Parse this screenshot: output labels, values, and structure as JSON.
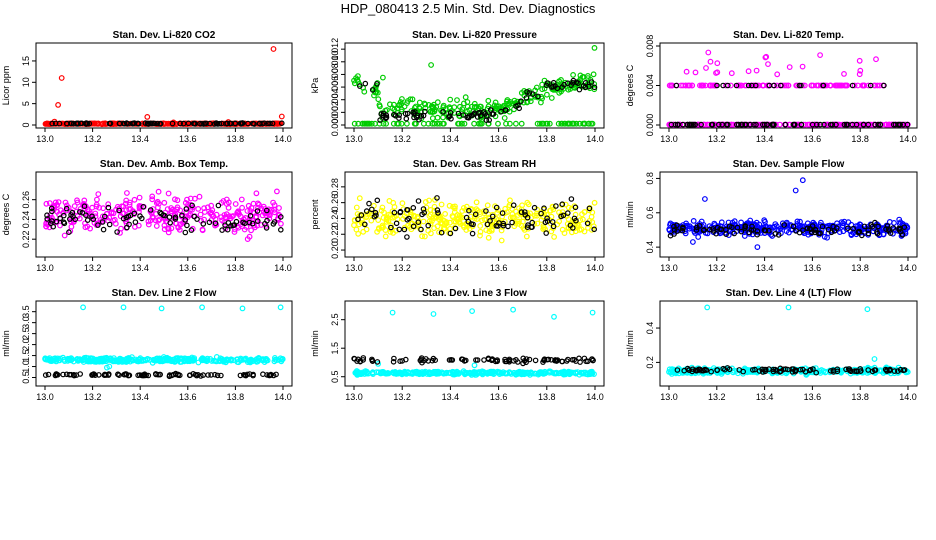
{
  "main_title": "HDP_080413  2.5 Min. Std. Dev. Diagnostics",
  "chart_data": [
    {
      "type": "scatter",
      "title": "Stan. Dev. Li-820 CO2",
      "ylabel": "Licor ppm",
      "xlim": [
        13.0,
        14.0
      ],
      "ylim": [
        0,
        18.5
      ],
      "xticks": [
        "13.0",
        "13.2",
        "13.4",
        "13.6",
        "13.8",
        "14.0"
      ],
      "yticks": [
        "0",
        "5",
        "10",
        "15"
      ],
      "color": "#ff0000",
      "base": 0.3,
      "spread": 0.08,
      "black_base": 0.35,
      "black_spread": 0.1,
      "outliers": [
        [
          13.04,
          0.8
        ],
        [
          13.055,
          4.7
        ],
        [
          13.07,
          11
        ],
        [
          13.43,
          1.9
        ],
        [
          13.96,
          17.8
        ],
        [
          13.995,
          2.0
        ],
        [
          13.54,
          0.6
        ],
        [
          13.77,
          0.7
        ]
      ]
    },
    {
      "type": "scatter",
      "title": "Stan. Dev. Li-820 Pressure",
      "ylabel": "kPa",
      "xlim": [
        13.0,
        14.0
      ],
      "ylim": [
        0,
        0.0125
      ],
      "xticks": [
        "13.0",
        "13.2",
        "13.4",
        "13.6",
        "13.8",
        "14.0"
      ],
      "yticks": [
        "0.000",
        "0.002",
        "0.004",
        "0.006",
        "0.008",
        "0.010",
        "0.012"
      ],
      "color": "#00cc00",
      "profile": "pressure",
      "outliers": [
        [
          13.998,
          0.0122
        ],
        [
          13.32,
          0.0095
        ],
        [
          13.12,
          0.0075
        ]
      ]
    },
    {
      "type": "scatter",
      "title": "Stan. Dev. Li-820 Temp.",
      "ylabel": "degrees C",
      "xlim": [
        13.0,
        14.0
      ],
      "ylim": [
        0,
        0.008
      ],
      "xticks": [
        "13.0",
        "13.2",
        "13.4",
        "13.6",
        "13.8",
        "14.0"
      ],
      "yticks": [
        "0.000",
        "0.004",
        "0.008"
      ],
      "color": "#ff00ff",
      "profile": "temp"
    },
    {
      "type": "scatter",
      "title": "Stan. Dev. Amb. Box Temp.",
      "ylabel": "degrees C",
      "xlim": [
        13.0,
        14.0
      ],
      "ylim": [
        0.205,
        0.285
      ],
      "xticks": [
        "13.0",
        "13.2",
        "13.4",
        "13.6",
        "13.8",
        "14.0"
      ],
      "yticks": [
        "0.22",
        "0.24",
        "0.26"
      ],
      "color": "#ff00ff",
      "base": 0.245,
      "spread": 0.018,
      "black_base": 0.24,
      "black_spread": 0.012
    },
    {
      "type": "scatter",
      "title": "Stan. Dev. Gas Stream RH",
      "ylabel": "percent",
      "xlim": [
        13.0,
        14.0
      ],
      "ylim": [
        0.195,
        0.295
      ],
      "xticks": [
        "13.0",
        "13.2",
        "13.4",
        "13.6",
        "13.8",
        "14.0"
      ],
      "yticks": [
        "0.20",
        "0.22",
        "0.24",
        "0.26",
        "0.28"
      ],
      "color": "#ffff00",
      "base": 0.24,
      "spread": 0.02,
      "black_base": 0.24,
      "black_spread": 0.02
    },
    {
      "type": "scatter",
      "title": "Stan. Dev. Sample Flow",
      "ylabel": "ml/min",
      "xlim": [
        13.0,
        14.0
      ],
      "ylim": [
        0.36,
        0.82
      ],
      "xticks": [
        "13.0",
        "13.2",
        "13.4",
        "13.6",
        "13.8",
        "14.0"
      ],
      "yticks": [
        "0.4",
        "0.6",
        "0.8"
      ],
      "color": "#0000ff",
      "base": 0.51,
      "spread": 0.04,
      "black_base": 0.5,
      "black_spread": 0.035,
      "outliers": [
        [
          13.56,
          0.79
        ],
        [
          13.53,
          0.73
        ],
        [
          13.15,
          0.68
        ],
        [
          13.37,
          0.4
        ],
        [
          13.1,
          0.43
        ]
      ]
    },
    {
      "type": "scatter",
      "title": "Stan. Dev. Line 2 Flow",
      "ylabel": "ml/min",
      "xlim": [
        13.0,
        14.0
      ],
      "ylim": [
        0.25,
        3.85
      ],
      "xticks": [
        "13.0",
        "13.2",
        "13.4",
        "13.6",
        "13.8",
        "14.0"
      ],
      "yticks": [
        "0.5",
        "1.0",
        "1.5",
        "2.0",
        "2.5",
        "3.0",
        "3.5"
      ],
      "color": "#00ffff",
      "base": 1.3,
      "spread": 0.1,
      "black_base": 0.62,
      "black_spread": 0.05,
      "outliers": [
        [
          13.16,
          3.7
        ],
        [
          13.33,
          3.7
        ],
        [
          13.49,
          3.65
        ],
        [
          13.66,
          3.7
        ],
        [
          13.83,
          3.65
        ],
        [
          13.99,
          3.7
        ],
        [
          13.26,
          0.95
        ],
        [
          13.27,
          1.0
        ]
      ]
    },
    {
      "type": "scatter",
      "title": "Stan. Dev. Line 3 Flow",
      "ylabel": "ml/min",
      "xlim": [
        13.0,
        14.0
      ],
      "ylim": [
        0.28,
        3.05
      ],
      "xticks": [
        "13.0",
        "13.2",
        "13.4",
        "13.6",
        "13.8",
        "14.0"
      ],
      "yticks": [
        "0.5",
        "1.5",
        "2.5"
      ],
      "color": "#00ffff",
      "base": 0.63,
      "spread": 0.05,
      "black_base": 1.08,
      "black_spread": 0.08,
      "outliers": [
        [
          13.16,
          2.75
        ],
        [
          13.33,
          2.7
        ],
        [
          13.49,
          2.8
        ],
        [
          13.66,
          2.85
        ],
        [
          13.83,
          2.6
        ],
        [
          13.99,
          2.75
        ],
        [
          13.1,
          0.95
        ],
        [
          13.5,
          0.9
        ]
      ]
    },
    {
      "type": "scatter",
      "title": "Stan. Dev. Line 4 (LT) Flow",
      "ylabel": "ml/min",
      "xlim": [
        13.0,
        14.0
      ],
      "ylim": [
        0.08,
        0.54
      ],
      "xticks": [
        "13.0",
        "13.2",
        "13.4",
        "13.6",
        "13.8",
        "14.0"
      ],
      "yticks": [
        "0.2",
        "0.4"
      ],
      "color": "#00ffff",
      "base": 0.15,
      "spread": 0.015,
      "black_base": 0.155,
      "black_spread": 0.012,
      "outliers": [
        [
          13.16,
          0.52
        ],
        [
          13.5,
          0.52
        ],
        [
          13.83,
          0.51
        ],
        [
          13.86,
          0.22
        ]
      ]
    }
  ]
}
